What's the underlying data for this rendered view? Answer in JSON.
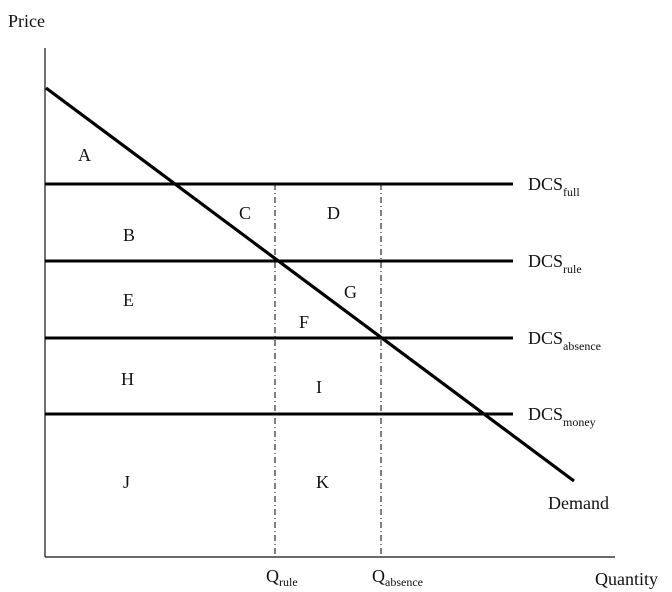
{
  "axes": {
    "y_label": "Price",
    "x_label": "Quantity"
  },
  "curves": {
    "demand_label": "Demand"
  },
  "price_lines": [
    {
      "main": "DCS",
      "sub": "full"
    },
    {
      "main": "DCS",
      "sub": "rule"
    },
    {
      "main": "DCS",
      "sub": "absence"
    },
    {
      "main": "DCS",
      "sub": "money"
    }
  ],
  "quantity_marks": [
    {
      "main": "Q",
      "sub": "rule"
    },
    {
      "main": "Q",
      "sub": "absence"
    }
  ],
  "regions": [
    "A",
    "B",
    "C",
    "D",
    "E",
    "F",
    "G",
    "H",
    "I",
    "J",
    "K"
  ]
}
